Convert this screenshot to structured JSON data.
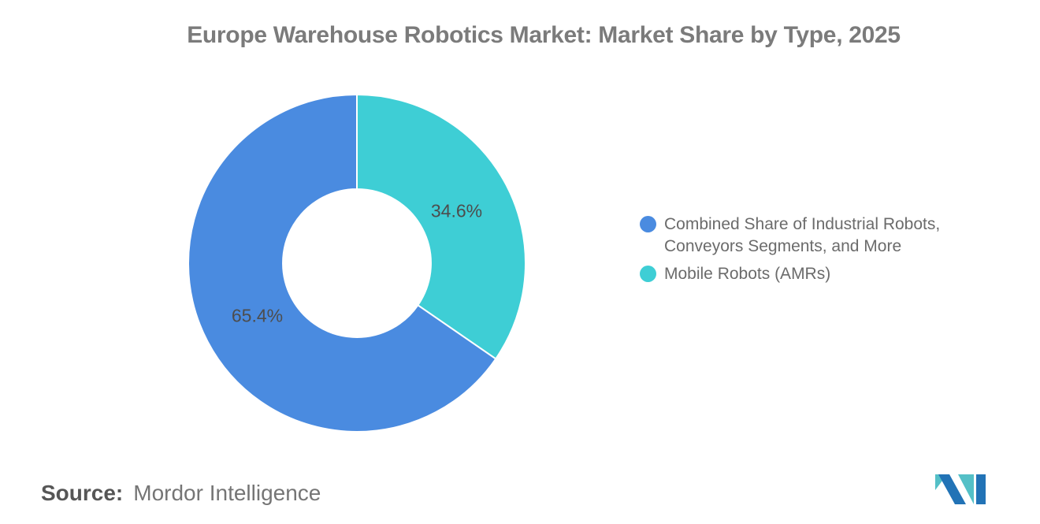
{
  "title": "Europe Warehouse Robotics Market: Market Share by Type, 2025",
  "chart_data": {
    "type": "pie",
    "subtype": "donut",
    "title": "Europe Warehouse Robotics Market: Market Share by Type, 2025",
    "units": "%",
    "start_angle_deg": 0,
    "direction": "clockwise",
    "inner_radius_ratio": 0.439,
    "label_radius_ratio": 0.668,
    "data_label_color": "#4d4d4d",
    "data_label_font_size": 23,
    "legend_position": "right",
    "slices": [
      {
        "id": "mobile-robots",
        "label": "Mobile Robots (AMRs)",
        "value": 34.6,
        "data_label": "34.6%",
        "color": "#3ECED5"
      },
      {
        "id": "industrial-combined",
        "label": "Combined Share of Industrial Robots, Conveyors Segments, and More",
        "value": 65.4,
        "data_label": "65.4%",
        "color": "#4A8BE0"
      }
    ]
  },
  "legend": {
    "items": [
      {
        "label": "Combined Share of Industrial Robots, Conveyors Segments, and More",
        "color": "#4A8BE0"
      },
      {
        "label": "Mobile Robots (AMRs)",
        "color": "#3ECED5"
      }
    ]
  },
  "source": {
    "label": "Source:",
    "value": "Mordor Intelligence"
  },
  "branding": {
    "logo_name": "mordor-intelligence-logo",
    "logo_blue": "#2273B6",
    "logo_teal": "#54C0C7"
  }
}
